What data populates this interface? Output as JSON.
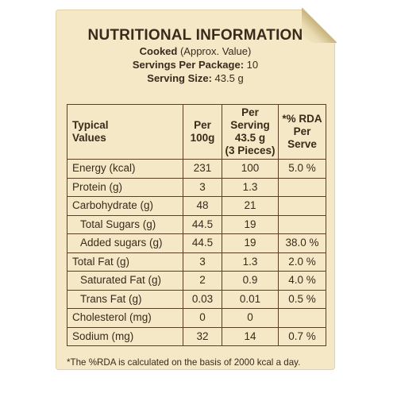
{
  "header": {
    "title": "NUTRITIONAL INFORMATION",
    "cooked_label": "Cooked",
    "cooked_note": "(Approx. Value)",
    "servings_label": "Servings Per Package:",
    "servings_value": "10",
    "serving_size_label": "Serving Size:",
    "serving_size_value": "43.5 g"
  },
  "table": {
    "headers": {
      "col1_line1": "Typical",
      "col1_line2": "Values",
      "col2_line1": "Per",
      "col2_line2": "100g",
      "col3_line1": "Per Serving",
      "col3_line2": "43.5 g",
      "col3_line3": "(3 Pieces)",
      "col4_line1": "*% RDA",
      "col4_line2": "Per Serve"
    },
    "rows": [
      {
        "name": "Energy (kcal)",
        "per100": "231",
        "perServing": "100",
        "rda": "5.0 %"
      },
      {
        "name": "Protein (g)",
        "per100": "3",
        "perServing": "1.3",
        "rda": ""
      },
      {
        "name": "Carbohydrate (g)",
        "per100": "48",
        "perServing": "21",
        "rda": ""
      },
      {
        "name": "Total Sugars (g)",
        "per100": "44.5",
        "perServing": "19",
        "rda": ""
      },
      {
        "name": "Added sugars (g)",
        "per100": "44.5",
        "perServing": "19",
        "rda": "38.0 %"
      },
      {
        "name": "Total Fat (g)",
        "per100": "3",
        "perServing": "1.3",
        "rda": "2.0 %"
      },
      {
        "name": "Saturated Fat (g)",
        "per100": "2",
        "perServing": "0.9",
        "rda": "4.0 %"
      },
      {
        "name": "Trans Fat (g)",
        "per100": "0.03",
        "perServing": "0.01",
        "rda": "0.5 %"
      },
      {
        "name": "Cholesterol (mg)",
        "per100": "0",
        "perServing": "0",
        "rda": ""
      },
      {
        "name": "Sodium (mg)",
        "per100": "32",
        "perServing": "14",
        "rda": "0.7 %"
      }
    ]
  },
  "footnote": "*The %RDA is calculated on the basis of 2000 kcal a day.",
  "colors": {
    "card": "#f4e8c6",
    "text": "#3a2a1c",
    "border": "#5a3f25"
  }
}
